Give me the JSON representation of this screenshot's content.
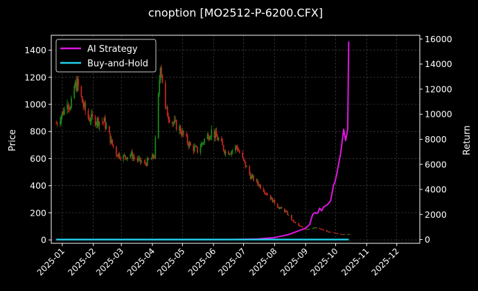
{
  "chart_data": {
    "type": "candlestick+line",
    "title": "cnoption [MO2512-P-6200.CFX]",
    "ylabel_left": "Price",
    "ylabel_right": "Return",
    "xlabel": "",
    "ylim_left": [
      -25,
      1510
    ],
    "ylim_right": [
      -300,
      16300
    ],
    "xlim": [
      "2024-12-21",
      "2025-12-24"
    ],
    "grid": true,
    "legend_position": "top-left",
    "x_ticks": [
      "2025-01",
      "2025-02",
      "2025-03",
      "2025-04",
      "2025-05",
      "2025-06",
      "2025-07",
      "2025-08",
      "2025-09",
      "2025-10",
      "2025-11",
      "2025-12"
    ],
    "y_ticks_left": [
      "0",
      "200",
      "400",
      "600",
      "800",
      "1000",
      "1200",
      "1400"
    ],
    "y_ticks_right": [
      "0",
      "2000",
      "4000",
      "6000",
      "8000",
      "10000",
      "12000",
      "14000",
      "16000"
    ],
    "colors": {
      "background": "#000000",
      "up_candle": "#1a8a1a",
      "down_candle": "#c0271f",
      "ai_strategy": "#e016e0",
      "buy_and_hold": "#22d3ee",
      "grid": "#555555",
      "text": "#ffffff"
    },
    "candle_anchors": [
      [
        "2024-12-26",
        860
      ],
      [
        "2025-01-03",
        960
      ],
      [
        "2025-01-06",
        1040
      ],
      [
        "2025-01-09",
        960
      ],
      [
        "2025-01-13",
        1130
      ],
      [
        "2025-01-16",
        1150
      ],
      [
        "2025-01-22",
        990
      ],
      [
        "2025-01-27",
        900
      ],
      [
        "2025-02-05",
        880
      ],
      [
        "2025-02-12",
        870
      ],
      [
        "2025-02-19",
        720
      ],
      [
        "2025-02-24",
        640
      ],
      [
        "2025-03-03",
        610
      ],
      [
        "2025-03-10",
        630
      ],
      [
        "2025-03-17",
        590
      ],
      [
        "2025-03-24",
        560
      ],
      [
        "2025-03-31",
        600
      ],
      [
        "2025-04-03",
        620
      ],
      [
        "2025-04-07",
        1050
      ],
      [
        "2025-04-09",
        1320
      ],
      [
        "2025-04-14",
        960
      ],
      [
        "2025-04-21",
        870
      ],
      [
        "2025-04-28",
        820
      ],
      [
        "2025-05-09",
        690
      ],
      [
        "2025-05-16",
        660
      ],
      [
        "2025-05-23",
        740
      ],
      [
        "2025-05-30",
        800
      ],
      [
        "2025-06-06",
        740
      ],
      [
        "2025-06-13",
        650
      ],
      [
        "2025-06-20",
        660
      ],
      [
        "2025-06-24",
        690
      ],
      [
        "2025-07-01",
        580
      ],
      [
        "2025-07-08",
        470
      ],
      [
        "2025-07-15",
        420
      ],
      [
        "2025-07-22",
        360
      ],
      [
        "2025-07-29",
        300
      ],
      [
        "2025-08-05",
        240
      ],
      [
        "2025-08-12",
        210
      ],
      [
        "2025-08-19",
        140
      ],
      [
        "2025-08-26",
        100
      ],
      [
        "2025-09-02",
        80
      ],
      [
        "2025-09-09",
        90
      ],
      [
        "2025-09-16",
        80
      ],
      [
        "2025-09-23",
        60
      ],
      [
        "2025-09-30",
        50
      ],
      [
        "2025-10-10",
        40
      ],
      [
        "2025-10-15",
        45
      ]
    ],
    "series": [
      {
        "name": "AI Strategy",
        "x": [
          "2024-12-26",
          "2025-06-15",
          "2025-07-15",
          "2025-08-01",
          "2025-08-15",
          "2025-08-25",
          "2025-09-01",
          "2025-09-05",
          "2025-09-08",
          "2025-09-10",
          "2025-09-13",
          "2025-09-15",
          "2025-09-17",
          "2025-09-19",
          "2025-09-21",
          "2025-09-23",
          "2025-09-26",
          "2025-09-29",
          "2025-09-30",
          "2025-10-02",
          "2025-10-06",
          "2025-10-09",
          "2025-10-11",
          "2025-10-13",
          "2025-10-14"
        ],
        "values": [
          0,
          0,
          50,
          150,
          400,
          700,
          900,
          1200,
          2000,
          2150,
          2100,
          2500,
          2300,
          2600,
          2700,
          2800,
          3100,
          4400,
          4500,
          5200,
          6900,
          8800,
          7900,
          8800,
          15800
        ]
      },
      {
        "name": "Buy-and-Hold",
        "x": [
          "2024-12-26",
          "2025-10-14"
        ],
        "values": [
          0,
          0
        ]
      }
    ]
  }
}
